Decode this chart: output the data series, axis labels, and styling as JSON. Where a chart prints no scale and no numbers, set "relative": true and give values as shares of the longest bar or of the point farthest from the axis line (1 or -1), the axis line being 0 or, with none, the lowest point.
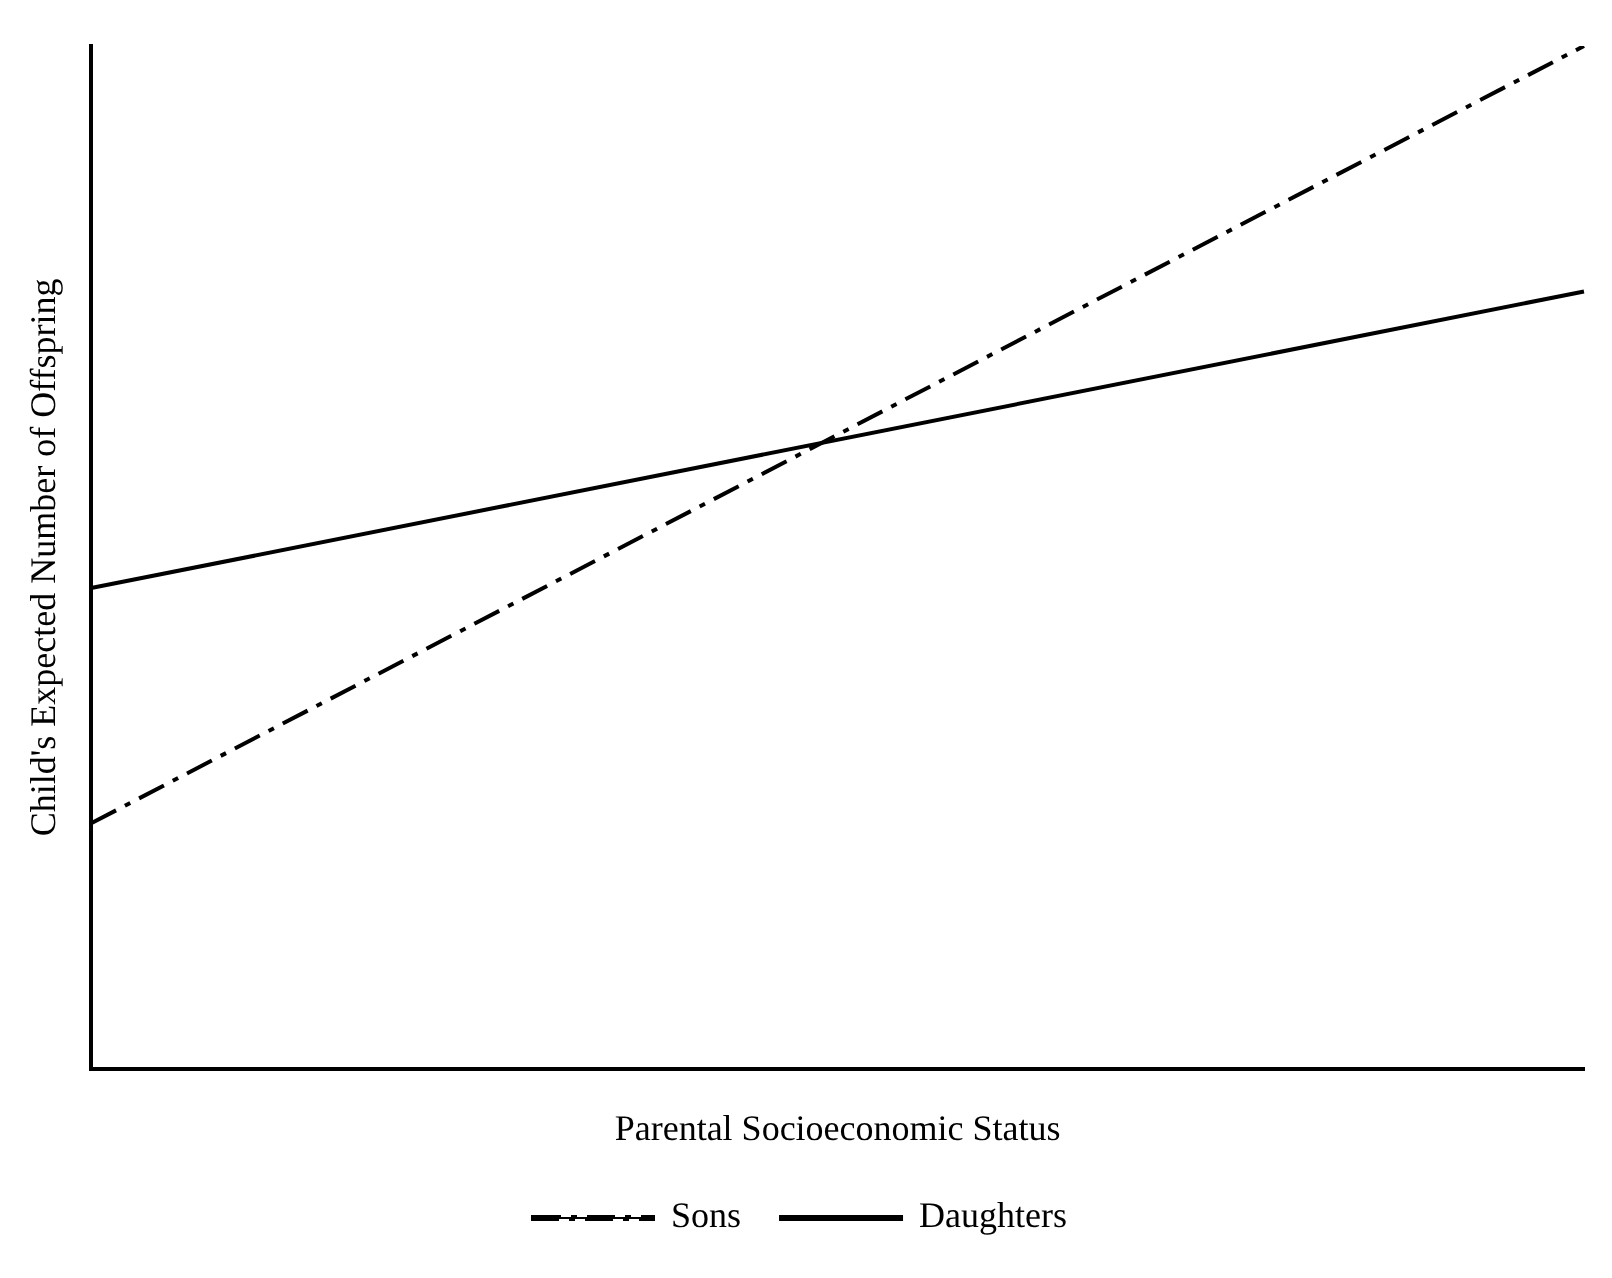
{
  "chart_data": {
    "type": "line",
    "relative": true,
    "xlabel": "Parental Socioeconomic Status",
    "ylabel": "Child's Expected Number of Offspring",
    "categories": [
      null,
      null
    ],
    "legend": "bottom",
    "grid": false,
    "marker": "none",
    "series": [
      {
        "name": "Sons",
        "color": "#000000",
        "values": [
          0.24,
          1
        ],
        "line_style": "dashed"
      },
      {
        "name": "Daughters",
        "color": "#000000",
        "values": [
          0.47,
          0.76
        ],
        "line_style": "solid"
      }
    ]
  }
}
